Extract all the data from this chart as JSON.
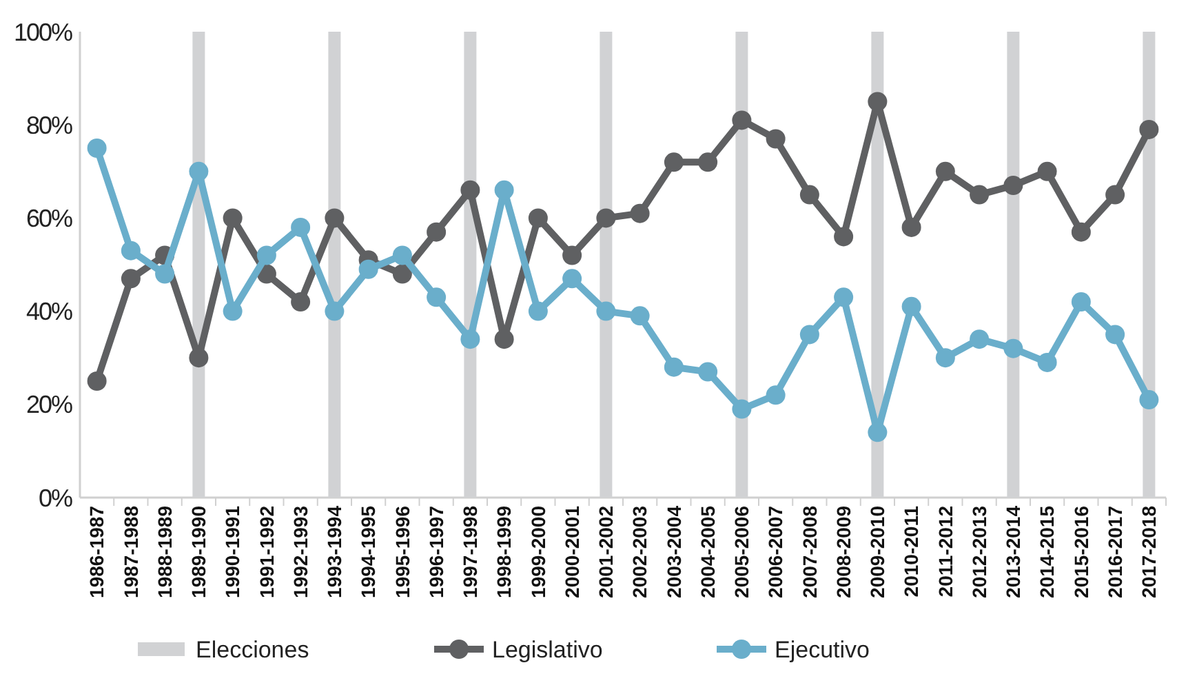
{
  "chart_data": {
    "type": "line",
    "categories": [
      "1986-1987",
      "1987-1988",
      "1988-1989",
      "1989-1990",
      "1990-1991",
      "1991-1992",
      "1992-1993",
      "1993-1994",
      "1994-1995",
      "1995-1996",
      "1996-1997",
      "1997-1998",
      "1998-1999",
      "1999-2000",
      "2000-2001",
      "2001-2002",
      "2002-2003",
      "2003-2004",
      "2004-2005",
      "2005-2006",
      "2006-2007",
      "2007-2008",
      "2008-2009",
      "2009-2010",
      "2010-2011",
      "2011-2012",
      "2012-2013",
      "2013-2014",
      "2014-2015",
      "2015-2016",
      "2016-2017",
      "2017-2018"
    ],
    "series": [
      {
        "name": "Elecciones",
        "type": "bar",
        "color": "#d1d2d4",
        "values": [
          null,
          null,
          null,
          100,
          null,
          null,
          null,
          100,
          null,
          null,
          null,
          100,
          null,
          null,
          null,
          100,
          null,
          null,
          null,
          100,
          null,
          null,
          null,
          100,
          null,
          null,
          null,
          100,
          null,
          null,
          null,
          100
        ]
      },
      {
        "name": "Legislativo",
        "color": "#5f6062",
        "values": [
          25,
          47,
          52,
          30,
          60,
          48,
          42,
          60,
          51,
          48,
          57,
          66,
          34,
          60,
          52,
          60,
          61,
          72,
          72,
          81,
          77,
          65,
          56,
          85,
          58,
          70,
          65,
          67,
          70,
          57,
          65,
          79
        ]
      },
      {
        "name": "Ejecutivo",
        "color": "#6aaecb",
        "values": [
          75,
          53,
          48,
          70,
          40,
          52,
          58,
          40,
          49,
          52,
          43,
          34,
          66,
          40,
          47,
          40,
          39,
          28,
          27,
          19,
          22,
          35,
          43,
          14,
          41,
          30,
          34,
          32,
          29,
          42,
          35,
          21
        ]
      }
    ],
    "ylim": [
      0,
      100
    ],
    "yticks": [
      {
        "value": 0,
        "label": "0%"
      },
      {
        "value": 20,
        "label": "20%"
      },
      {
        "value": 40,
        "label": "40%"
      },
      {
        "value": 60,
        "label": "60%"
      },
      {
        "value": 80,
        "label": "80%"
      },
      {
        "value": 100,
        "label": "100%"
      }
    ],
    "grid": false,
    "legend": "bottom",
    "marker": "circle",
    "line_style": "solid"
  }
}
